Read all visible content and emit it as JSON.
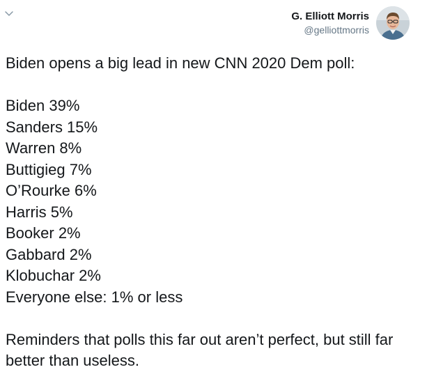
{
  "author": {
    "name": "G. Elliott Morris",
    "handle": "@gelliottmorris",
    "avatar_icon": "avatar-photo"
  },
  "menu": {
    "icon": "chevron-down-icon"
  },
  "tweet": {
    "headline": "Biden opens a big lead in new CNN 2020 Dem poll:",
    "results": [
      "Biden 39%",
      "Sanders 15%",
      "Warren 8%",
      "Buttigieg 7%",
      "O’Rourke 6%",
      "Harris 5%",
      "Booker 2%",
      "Gabbard 2%",
      "Klobuchar 2%",
      "Everyone else: 1% or less"
    ],
    "closing": "Reminders that polls this far out aren’t perfect, but still far better than useless."
  },
  "colors": {
    "text": "#14171a",
    "secondary": "#657786",
    "background": "#ffffff"
  }
}
